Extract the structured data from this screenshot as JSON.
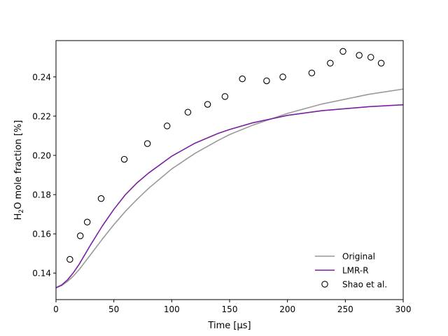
{
  "chart_data": {
    "type": "line",
    "title": "",
    "xlabel": "Time [μs]",
    "ylabel_parts": {
      "pre": "H",
      "sub": "2",
      "post": "O mole fraction [%]"
    },
    "xlim": [
      0,
      300
    ],
    "ylim": [
      0.1265,
      0.2585
    ],
    "xticks": [
      0,
      50,
      100,
      150,
      200,
      250,
      300
    ],
    "yticks": [
      0.14,
      0.16,
      0.18,
      0.2,
      0.22,
      0.24
    ],
    "ytick_labels": [
      "0.14",
      "0.16",
      "0.18",
      "0.20",
      "0.22",
      "0.24"
    ],
    "grid": false,
    "legend_position": "lower-right",
    "series": [
      {
        "name": "Original",
        "kind": "line",
        "color": "#999999",
        "x": [
          0,
          5,
          10,
          15,
          20,
          30,
          40,
          50,
          60,
          70,
          80,
          100,
          120,
          140,
          150,
          170,
          200,
          230,
          270,
          300
        ],
        "y": [
          0.1325,
          0.1337,
          0.1358,
          0.1385,
          0.1418,
          0.1495,
          0.1573,
          0.1647,
          0.1715,
          0.1776,
          0.1832,
          0.1931,
          0.201,
          0.2076,
          0.2106,
          0.2154,
          0.2214,
          0.2262,
          0.2311,
          0.2338
        ]
      },
      {
        "name": "LMR-R",
        "kind": "line",
        "color": "#7b1fa2",
        "x": [
          0,
          5,
          10,
          15,
          20,
          30,
          40,
          50,
          60,
          70,
          80,
          100,
          120,
          140,
          150,
          170,
          200,
          230,
          270,
          300
        ],
        "y": [
          0.1325,
          0.134,
          0.1366,
          0.1402,
          0.1445,
          0.1545,
          0.164,
          0.1725,
          0.18,
          0.186,
          0.191,
          0.1996,
          0.2062,
          0.2112,
          0.2132,
          0.2166,
          0.2204,
          0.2228,
          0.2248,
          0.2258
        ]
      },
      {
        "name": "Shao et al.",
        "kind": "scatter",
        "color": "#000000",
        "x": [
          12,
          21,
          27,
          39,
          59,
          79,
          96,
          114,
          131,
          146,
          161,
          182,
          196,
          221,
          237,
          248,
          262,
          272,
          281
        ],
        "y": [
          0.147,
          0.159,
          0.166,
          0.178,
          0.198,
          0.206,
          0.215,
          0.222,
          0.226,
          0.23,
          0.239,
          0.238,
          0.24,
          0.242,
          0.247,
          0.253,
          0.251,
          0.25,
          0.247
        ]
      }
    ]
  }
}
